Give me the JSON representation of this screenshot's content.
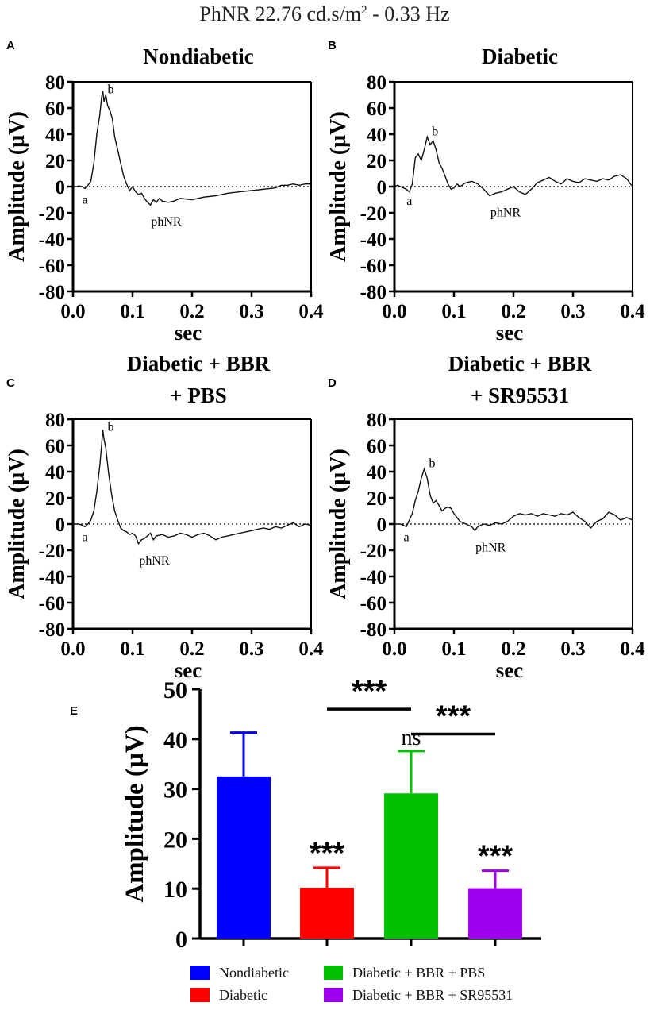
{
  "figure": {
    "title_main": "PhNR 22.76 cd.s/m",
    "title_sup": "2",
    "title_tail": " - 0.33 Hz"
  },
  "panels": [
    {
      "letter": "A",
      "title_lines": [
        "Nondiabetic"
      ],
      "xlabel": "sec",
      "ylabel": "Amplitude (µV)",
      "peak_labels": {
        "a": "a",
        "b": "b",
        "phnr": "phNR"
      },
      "a_point": [
        0.02,
        -2
      ],
      "b_point": [
        0.05,
        70
      ],
      "phnr_point": [
        0.13,
        -14
      ],
      "trace": [
        [
          0,
          0
        ],
        [
          0.005,
          0
        ],
        [
          0.01,
          0.5
        ],
        [
          0.015,
          0
        ],
        [
          0.02,
          -1.5
        ],
        [
          0.025,
          1
        ],
        [
          0.03,
          4
        ],
        [
          0.035,
          18
        ],
        [
          0.04,
          40
        ],
        [
          0.045,
          55
        ],
        [
          0.048,
          68
        ],
        [
          0.05,
          73
        ],
        [
          0.052,
          65
        ],
        [
          0.055,
          70
        ],
        [
          0.058,
          62
        ],
        [
          0.062,
          58
        ],
        [
          0.066,
          52
        ],
        [
          0.07,
          38
        ],
        [
          0.075,
          28
        ],
        [
          0.08,
          18
        ],
        [
          0.085,
          8
        ],
        [
          0.09,
          2
        ],
        [
          0.095,
          -3
        ],
        [
          0.1,
          0
        ],
        [
          0.105,
          -4
        ],
        [
          0.11,
          -6
        ],
        [
          0.115,
          -5
        ],
        [
          0.12,
          -9
        ],
        [
          0.125,
          -12
        ],
        [
          0.13,
          -14
        ],
        [
          0.135,
          -10
        ],
        [
          0.14,
          -12
        ],
        [
          0.145,
          -9
        ],
        [
          0.15,
          -11
        ],
        [
          0.16,
          -12
        ],
        [
          0.17,
          -11
        ],
        [
          0.18,
          -9
        ],
        [
          0.2,
          -10
        ],
        [
          0.22,
          -8
        ],
        [
          0.24,
          -7
        ],
        [
          0.26,
          -5
        ],
        [
          0.28,
          -4
        ],
        [
          0.3,
          -3
        ],
        [
          0.32,
          -2
        ],
        [
          0.34,
          -1
        ],
        [
          0.35,
          1
        ],
        [
          0.36,
          1
        ],
        [
          0.37,
          2
        ],
        [
          0.38,
          1
        ],
        [
          0.39,
          2
        ],
        [
          0.4,
          2
        ]
      ]
    },
    {
      "letter": "B",
      "title_lines": [
        "Diabetic"
      ],
      "xlabel": "sec",
      "ylabel": "Amplitude (µV)",
      "peak_labels": {
        "a": "a",
        "b": "b",
        "phnr": "phNR"
      },
      "a_point": [
        0.025,
        -3
      ],
      "b_point": [
        0.055,
        38
      ],
      "phnr_point": [
        0.16,
        -7
      ],
      "trace": [
        [
          0,
          0
        ],
        [
          0.005,
          1
        ],
        [
          0.01,
          0
        ],
        [
          0.015,
          -1
        ],
        [
          0.02,
          -2
        ],
        [
          0.025,
          -4
        ],
        [
          0.03,
          2
        ],
        [
          0.035,
          22
        ],
        [
          0.04,
          25
        ],
        [
          0.045,
          20
        ],
        [
          0.05,
          28
        ],
        [
          0.055,
          38
        ],
        [
          0.06,
          32
        ],
        [
          0.065,
          35
        ],
        [
          0.07,
          28
        ],
        [
          0.075,
          18
        ],
        [
          0.08,
          14
        ],
        [
          0.085,
          8
        ],
        [
          0.09,
          2
        ],
        [
          0.095,
          -2
        ],
        [
          0.1,
          -1
        ],
        [
          0.105,
          2
        ],
        [
          0.11,
          0
        ],
        [
          0.12,
          3
        ],
        [
          0.13,
          4
        ],
        [
          0.14,
          2
        ],
        [
          0.15,
          -2
        ],
        [
          0.16,
          -7
        ],
        [
          0.17,
          -5
        ],
        [
          0.18,
          -4
        ],
        [
          0.19,
          -2
        ],
        [
          0.2,
          0
        ],
        [
          0.21,
          -4
        ],
        [
          0.22,
          -6
        ],
        [
          0.23,
          -2
        ],
        [
          0.24,
          3
        ],
        [
          0.25,
          5
        ],
        [
          0.26,
          7
        ],
        [
          0.27,
          4
        ],
        [
          0.28,
          2
        ],
        [
          0.29,
          6
        ],
        [
          0.3,
          4
        ],
        [
          0.31,
          3
        ],
        [
          0.32,
          6
        ],
        [
          0.33,
          5
        ],
        [
          0.34,
          4
        ],
        [
          0.35,
          6
        ],
        [
          0.36,
          5
        ],
        [
          0.37,
          8
        ],
        [
          0.38,
          9
        ],
        [
          0.39,
          6
        ],
        [
          0.4,
          0
        ]
      ]
    },
    {
      "letter": "C",
      "title_lines": [
        "Diabetic + BBR",
        "+ PBS"
      ],
      "xlabel": "sec",
      "ylabel": "Amplitude (µV)",
      "peak_labels": {
        "a": "a",
        "b": "b",
        "phnr": "phNR"
      },
      "a_point": [
        0.02,
        -2
      ],
      "b_point": [
        0.05,
        70
      ],
      "phnr_point": [
        0.11,
        -15
      ],
      "trace": [
        [
          0,
          0
        ],
        [
          0.005,
          0
        ],
        [
          0.01,
          0
        ],
        [
          0.015,
          -1
        ],
        [
          0.02,
          -2
        ],
        [
          0.025,
          0
        ],
        [
          0.03,
          3
        ],
        [
          0.035,
          10
        ],
        [
          0.04,
          25
        ],
        [
          0.045,
          45
        ],
        [
          0.048,
          60
        ],
        [
          0.05,
          72
        ],
        [
          0.052,
          65
        ],
        [
          0.055,
          58
        ],
        [
          0.06,
          38
        ],
        [
          0.065,
          22
        ],
        [
          0.07,
          10
        ],
        [
          0.075,
          3
        ],
        [
          0.08,
          -3
        ],
        [
          0.085,
          -5
        ],
        [
          0.09,
          -6
        ],
        [
          0.095,
          -8
        ],
        [
          0.1,
          -7
        ],
        [
          0.105,
          -9
        ],
        [
          0.11,
          -15
        ],
        [
          0.115,
          -12
        ],
        [
          0.12,
          -11
        ],
        [
          0.125,
          -9
        ],
        [
          0.13,
          -7
        ],
        [
          0.135,
          -12
        ],
        [
          0.14,
          -9
        ],
        [
          0.15,
          -8
        ],
        [
          0.16,
          -10
        ],
        [
          0.17,
          -9
        ],
        [
          0.18,
          -7
        ],
        [
          0.19,
          -8
        ],
        [
          0.2,
          -10
        ],
        [
          0.21,
          -8
        ],
        [
          0.22,
          -7
        ],
        [
          0.23,
          -9
        ],
        [
          0.24,
          -12
        ],
        [
          0.25,
          -10
        ],
        [
          0.26,
          -9
        ],
        [
          0.27,
          -8
        ],
        [
          0.28,
          -7
        ],
        [
          0.29,
          -6
        ],
        [
          0.3,
          -5
        ],
        [
          0.31,
          -4
        ],
        [
          0.32,
          -3
        ],
        [
          0.33,
          -4
        ],
        [
          0.34,
          -2
        ],
        [
          0.35,
          -3
        ],
        [
          0.36,
          -1
        ],
        [
          0.37,
          1
        ],
        [
          0.38,
          -2
        ],
        [
          0.39,
          0
        ],
        [
          0.4,
          -1
        ]
      ]
    },
    {
      "letter": "D",
      "title_lines": [
        "Diabetic + BBR",
        "+ SR95531"
      ],
      "xlabel": "sec",
      "ylabel": "Amplitude (µV)",
      "peak_labels": {
        "a": "a",
        "b": "b",
        "phnr": "phNR"
      },
      "a_point": [
        0.02,
        -2
      ],
      "b_point": [
        0.05,
        42
      ],
      "phnr_point": [
        0.135,
        -5
      ],
      "trace": [
        [
          0,
          0
        ],
        [
          0.005,
          0
        ],
        [
          0.01,
          0
        ],
        [
          0.015,
          -1
        ],
        [
          0.02,
          -2
        ],
        [
          0.025,
          3
        ],
        [
          0.03,
          8
        ],
        [
          0.035,
          18
        ],
        [
          0.04,
          25
        ],
        [
          0.045,
          35
        ],
        [
          0.05,
          42
        ],
        [
          0.055,
          35
        ],
        [
          0.06,
          22
        ],
        [
          0.065,
          16
        ],
        [
          0.07,
          18
        ],
        [
          0.075,
          14
        ],
        [
          0.08,
          10
        ],
        [
          0.085,
          12
        ],
        [
          0.09,
          13
        ],
        [
          0.095,
          12
        ],
        [
          0.1,
          8
        ],
        [
          0.105,
          5
        ],
        [
          0.11,
          2
        ],
        [
          0.12,
          0
        ],
        [
          0.13,
          -2
        ],
        [
          0.135,
          -5
        ],
        [
          0.14,
          -2
        ],
        [
          0.15,
          0
        ],
        [
          0.16,
          -1
        ],
        [
          0.17,
          1
        ],
        [
          0.18,
          0
        ],
        [
          0.19,
          2
        ],
        [
          0.2,
          6
        ],
        [
          0.21,
          8
        ],
        [
          0.22,
          7
        ],
        [
          0.23,
          8
        ],
        [
          0.24,
          6
        ],
        [
          0.25,
          8
        ],
        [
          0.26,
          7
        ],
        [
          0.27,
          6
        ],
        [
          0.28,
          8
        ],
        [
          0.29,
          7
        ],
        [
          0.3,
          9
        ],
        [
          0.31,
          5
        ],
        [
          0.32,
          2
        ],
        [
          0.33,
          -3
        ],
        [
          0.34,
          2
        ],
        [
          0.35,
          4
        ],
        [
          0.36,
          9
        ],
        [
          0.37,
          7
        ],
        [
          0.38,
          3
        ],
        [
          0.39,
          5
        ],
        [
          0.4,
          3
        ]
      ]
    }
  ],
  "trace_axes": {
    "xlim": [
      0,
      0.4
    ],
    "ylim": [
      -80,
      80
    ],
    "xticks": [
      "0.0",
      "0.1",
      "0.2",
      "0.3",
      "0.4"
    ],
    "yticks": [
      "80",
      "60",
      "40",
      "20",
      "0",
      "-20",
      "-40",
      "-60",
      "-80"
    ]
  },
  "chart_data": {
    "type": "bar",
    "letter": "E",
    "ylabel": "Amplitude (µV)",
    "ylim": [
      0,
      50
    ],
    "yticks": [
      "0",
      "10",
      "20",
      "30",
      "40",
      "50"
    ],
    "categories": [
      "Nondiabetic",
      "Diabetic",
      "Diabetic + BBR + PBS",
      "Diabetic + BBR + SR95531"
    ],
    "values": [
      32.5,
      10.2,
      29.1,
      10.1
    ],
    "errors": [
      8.8,
      4.0,
      8.5,
      3.5
    ],
    "colors": [
      "#0000ff",
      "#ff0000",
      "#00c000",
      "#a000f0"
    ],
    "bar_annotations": [
      "",
      "***",
      "ns",
      "***"
    ],
    "comparisons": [
      {
        "from": 1,
        "to": 2,
        "label": "***",
        "y": 46
      },
      {
        "from": 2,
        "to": 3,
        "label": "***",
        "y": 41
      }
    ],
    "legend": [
      {
        "label": "Nondiabetic",
        "color": "#0000ff"
      },
      {
        "label": "Diabetic + BBR + PBS",
        "color": "#00c000"
      },
      {
        "label": "Diabetic",
        "color": "#ff0000"
      },
      {
        "label": "Diabetic + BBR + SR95531",
        "color": "#a000f0"
      }
    ]
  }
}
